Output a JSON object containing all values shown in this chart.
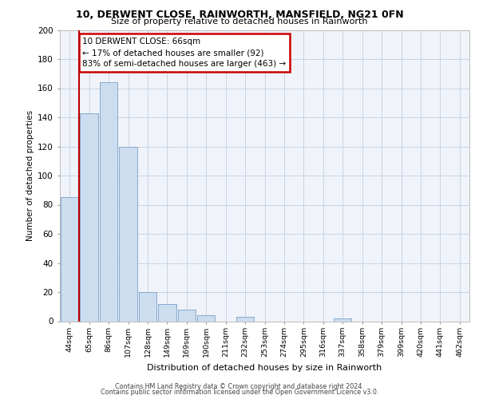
{
  "title1": "10, DERWENT CLOSE, RAINWORTH, MANSFIELD, NG21 0FN",
  "title2": "Size of property relative to detached houses in Rainworth",
  "xlabel": "Distribution of detached houses by size in Rainworth",
  "ylabel": "Number of detached properties",
  "bar_labels": [
    "44sqm",
    "65sqm",
    "86sqm",
    "107sqm",
    "128sqm",
    "149sqm",
    "169sqm",
    "190sqm",
    "211sqm",
    "232sqm",
    "253sqm",
    "274sqm",
    "295sqm",
    "316sqm",
    "337sqm",
    "358sqm",
    "379sqm",
    "399sqm",
    "420sqm",
    "441sqm",
    "462sqm"
  ],
  "bar_values": [
    85,
    143,
    164,
    120,
    20,
    12,
    8,
    4,
    0,
    3,
    0,
    0,
    0,
    0,
    2,
    0,
    0,
    0,
    0,
    0,
    0
  ],
  "bar_color": "#ccddf0",
  "bar_edge_color": "#88aacc",
  "vline_x": 0.5,
  "vline_color": "#bb0000",
  "annotation_box_text": "10 DERWENT CLOSE: 66sqm\n← 17% of detached houses are smaller (92)\n83% of semi-detached houses are larger (463) →",
  "annotation_box_color": "#cc0000",
  "ylim": [
    0,
    200
  ],
  "yticks": [
    0,
    20,
    40,
    60,
    80,
    100,
    120,
    140,
    160,
    180,
    200
  ],
  "footer1": "Contains HM Land Registry data © Crown copyright and database right 2024.",
  "footer2": "Contains public sector information licensed under the Open Government Licence v3.0.",
  "bg_color": "#f0f4fa",
  "grid_color": "#c8d4e4"
}
